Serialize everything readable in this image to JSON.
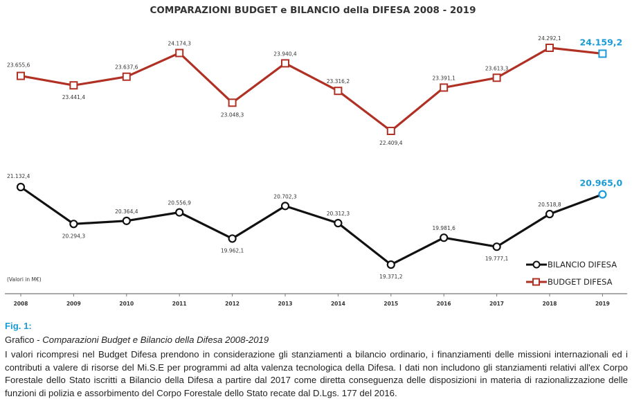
{
  "chart_data": {
    "type": "line",
    "title": "COMPARAZIONI BUDGET e BILANCIO della DIFESA 2008 - 2019",
    "x": [
      "2008",
      "2009",
      "2010",
      "2011",
      "2012",
      "2013",
      "2014",
      "2015",
      "2016",
      "2017",
      "2018",
      "2019"
    ],
    "unit_note": "(Valori in M€)",
    "series": [
      {
        "name": "BUDGET DIFESA",
        "color": "#b03024",
        "highlight_color": "#1a9ad6",
        "marker": "square",
        "values": [
          23655.6,
          23441.4,
          23637.6,
          24174.3,
          23048.3,
          23940.4,
          23316.2,
          22409.4,
          23391.1,
          23613.3,
          24292.1,
          24159.2
        ],
        "labels": [
          "23.655,6",
          "23.441,4",
          "23.637,6",
          "24.174,3",
          "23.048,3",
          "23.940,4",
          "23.316,2",
          "22.409,4",
          "23.391,1",
          "23.613,3",
          "24.292,1",
          "24.159,2"
        ]
      },
      {
        "name": "BILANCIO DIFESA",
        "color": "#111111",
        "highlight_color": "#1a9ad6",
        "marker": "circle",
        "values": [
          21132.4,
          20294.3,
          20364.4,
          20556.9,
          19962.1,
          20702.3,
          20312.3,
          19371.2,
          19981.6,
          19777.1,
          20518.8,
          20965.0
        ],
        "labels": [
          "21.132,4",
          "20.294,3",
          "20.364,4",
          "20.556,9",
          "19.962,1",
          "20.702,3",
          "20.312,3",
          "19.371,2",
          "19.981,6",
          "19.777,1",
          "20.518,8",
          "20.965,0"
        ]
      }
    ],
    "legend_position": "bottom-right",
    "grid": false
  },
  "caption": {
    "fig_label": "Fig. 1:",
    "sub_prefix": "Grafico - ",
    "sub_title": "Comparazioni Budget e Bilancio della Difesa 2008-2019",
    "body": "I valori ricompresi nel Budget Difesa prendono in considerazione gli stanziamenti a bilancio ordinario, i finanziamenti delle missioni internazionali ed i contributi a valere di risorse del Mi.S.E per programmi ad alta valenza tecnologica della Difesa. I dati non includono gli stanziamenti relativi all'ex Corpo Forestale dello Stato iscritti a Bilancio della Difesa a partire dal 2017 come diretta conseguenza delle disposizioni in materia di razionalizzazione delle funzioni di polizia e assorbimento del Corpo Forestale dello Stato recate dal D.Lgs. 177 del 2016."
  }
}
